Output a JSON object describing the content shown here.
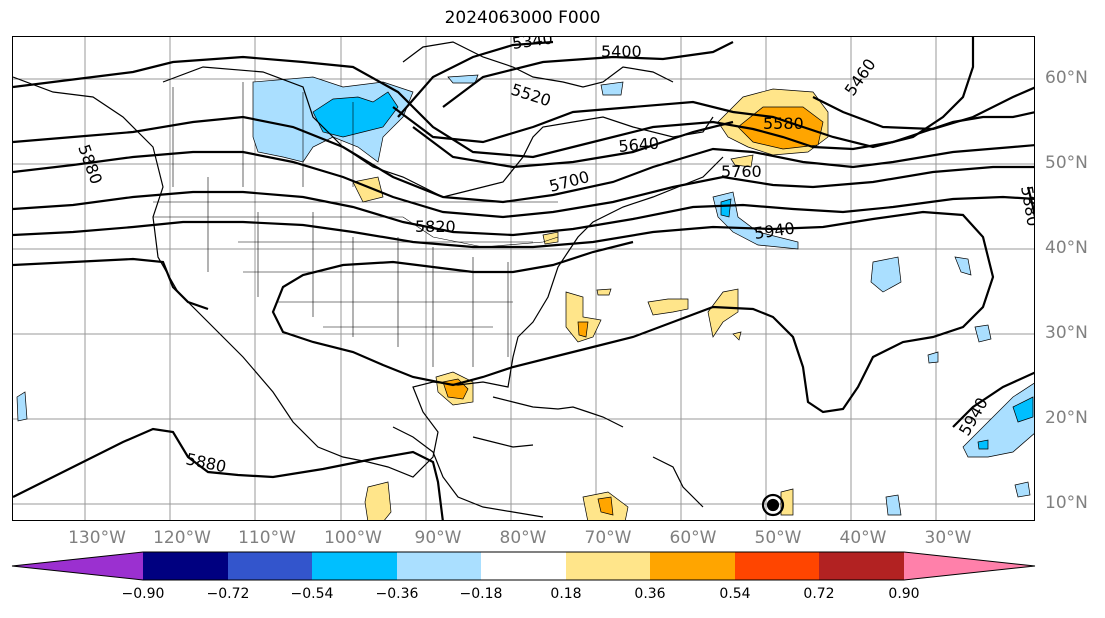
{
  "title": "2024063000 F000",
  "lat_labels": [
    "60°N",
    "50°N",
    "40°N",
    "30°N",
    "20°N",
    "10°N"
  ],
  "lon_labels": [
    "130°W",
    "120°W",
    "110°W",
    "100°W",
    "90°W",
    "80°W",
    "70°W",
    "60°W",
    "50°W",
    "40°W",
    "30°W"
  ],
  "contour_labels": [
    "5340",
    "5400",
    "5460",
    "5520",
    "5580",
    "5640",
    "5700",
    "5760",
    "5820",
    "5940",
    "5880",
    "5880",
    "5940",
    "5880"
  ],
  "colorbar": {
    "ticks": [
      "−0.90",
      "−0.72",
      "−0.54",
      "−0.36",
      "−0.18",
      "0.18",
      "0.36",
      "0.54",
      "0.72",
      "0.90"
    ],
    "colors": [
      "#9b30d0",
      "#000080",
      "#3355cc",
      "#00bfff",
      "#aadfff",
      "#ffffff",
      "#ffe58a",
      "#ffa500",
      "#ff4500",
      "#b22222",
      "#ff80aa"
    ]
  },
  "colors": {
    "ocean_bg": "#ffffff",
    "grid": "#999999",
    "contour": "#000000",
    "axis_label": "#808080"
  }
}
